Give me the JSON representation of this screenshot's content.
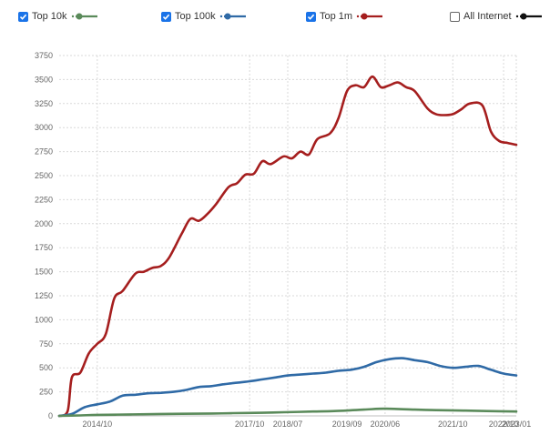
{
  "legend": {
    "items": [
      {
        "label": "Top 10k",
        "color": "#5a8a5a",
        "checked": true
      },
      {
        "label": "Top 100k",
        "color": "#2f6aa6",
        "checked": true
      },
      {
        "label": "Top 1m",
        "color": "#a51e1e",
        "checked": true
      },
      {
        "label": "All Internet",
        "color": "#111111",
        "checked": false
      }
    ]
  },
  "chart_data": {
    "type": "line",
    "title": "",
    "xlabel": "",
    "ylabel": "",
    "ylim": [
      0,
      3750
    ],
    "yticks": [
      0,
      250,
      500,
      750,
      1000,
      1250,
      1500,
      1750,
      2000,
      2250,
      2500,
      2750,
      3000,
      3250,
      3500,
      3750
    ],
    "xlim": [
      "2014/01",
      "2023/01"
    ],
    "xticks": [
      "2014/10",
      "2017/10",
      "2018/07",
      "2019/09",
      "2020/06",
      "2021/10",
      "2022/10",
      "2023/01"
    ],
    "grid": true,
    "legend_position": "top",
    "series": [
      {
        "name": "Top 1m",
        "color": "#a51e1e",
        "x": [
          "2014/01",
          "2014/03",
          "2014/04",
          "2014/06",
          "2014/08",
          "2014/10",
          "2014/12",
          "2015/02",
          "2015/04",
          "2015/07",
          "2015/09",
          "2015/11",
          "2016/01",
          "2016/03",
          "2016/06",
          "2016/08",
          "2016/10",
          "2016/12",
          "2017/02",
          "2017/05",
          "2017/07",
          "2017/09",
          "2017/11",
          "2018/01",
          "2018/03",
          "2018/06",
          "2018/08",
          "2018/10",
          "2018/12",
          "2019/02",
          "2019/05",
          "2019/07",
          "2019/09",
          "2019/11",
          "2020/01",
          "2020/03",
          "2020/05",
          "2020/07",
          "2020/09",
          "2020/11",
          "2021/01",
          "2021/04",
          "2021/06",
          "2021/08",
          "2021/10",
          "2021/12",
          "2022/02",
          "2022/05",
          "2022/07",
          "2022/09",
          "2022/11",
          "2023/01"
        ],
        "y": [
          0,
          50,
          400,
          450,
          650,
          750,
          850,
          1220,
          1300,
          1480,
          1500,
          1540,
          1560,
          1650,
          1900,
          2050,
          2030,
          2100,
          2200,
          2380,
          2420,
          2510,
          2520,
          2650,
          2620,
          2700,
          2680,
          2750,
          2720,
          2880,
          2940,
          3100,
          3380,
          3440,
          3420,
          3530,
          3420,
          3440,
          3470,
          3420,
          3380,
          3200,
          3140,
          3130,
          3140,
          3190,
          3250,
          3230,
          2960,
          2860,
          2840,
          2820
        ]
      },
      {
        "name": "Top 100k",
        "color": "#2f6aa6",
        "x": [
          "2014/01",
          "2014/04",
          "2014/07",
          "2014/10",
          "2015/01",
          "2015/04",
          "2015/07",
          "2015/10",
          "2016/01",
          "2016/04",
          "2016/07",
          "2016/10",
          "2017/01",
          "2017/04",
          "2017/07",
          "2017/10",
          "2018/01",
          "2018/04",
          "2018/07",
          "2018/10",
          "2019/01",
          "2019/04",
          "2019/07",
          "2019/10",
          "2020/01",
          "2020/04",
          "2020/07",
          "2020/10",
          "2021/01",
          "2021/04",
          "2021/07",
          "2021/10",
          "2022/01",
          "2022/04",
          "2022/07",
          "2022/10",
          "2023/01"
        ],
        "y": [
          0,
          20,
          90,
          120,
          150,
          210,
          220,
          235,
          240,
          250,
          270,
          300,
          310,
          330,
          345,
          360,
          380,
          400,
          420,
          430,
          440,
          450,
          470,
          480,
          510,
          560,
          590,
          600,
          580,
          560,
          520,
          500,
          510,
          520,
          480,
          440,
          420
        ]
      },
      {
        "name": "Top 10k",
        "color": "#5a8a5a",
        "x": [
          "2014/01",
          "2014/06",
          "2014/10",
          "2015/06",
          "2016/01",
          "2016/06",
          "2017/01",
          "2017/06",
          "2018/01",
          "2018/06",
          "2019/01",
          "2019/06",
          "2020/01",
          "2020/06",
          "2021/01",
          "2021/06",
          "2022/01",
          "2022/06",
          "2023/01"
        ],
        "y": [
          0,
          5,
          10,
          15,
          20,
          22,
          25,
          28,
          32,
          38,
          45,
          50,
          65,
          75,
          65,
          60,
          55,
          50,
          45
        ]
      }
    ]
  }
}
